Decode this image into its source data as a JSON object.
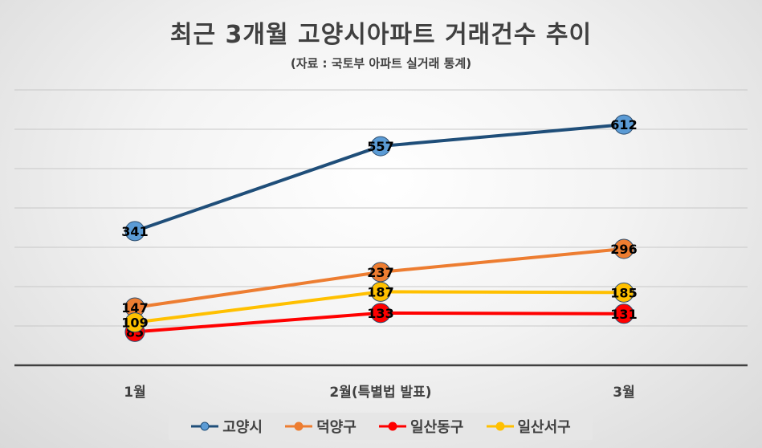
{
  "chart_data": {
    "type": "line",
    "title": "최근 3개월 고양시아파트 거래건수 추이",
    "subtitle": "(자료 : 국토부 아파트 실거래 통계)",
    "categories": [
      "1월",
      "2월(특별법 발표)",
      "3월"
    ],
    "series": [
      {
        "name": "고양시",
        "values": [
          341,
          557,
          612
        ],
        "color": "#1f4e79",
        "marker": "#5b9bd5"
      },
      {
        "name": "덕양구",
        "values": [
          147,
          237,
          296
        ],
        "color": "#ed7d31",
        "marker": "#ed7d31"
      },
      {
        "name": "일산동구",
        "values": [
          85,
          133,
          131
        ],
        "color": "#ff0000",
        "marker": "#ff0000"
      },
      {
        "name": "일산서구",
        "values": [
          109,
          187,
          185
        ],
        "color": "#ffc000",
        "marker": "#ffc000"
      }
    ],
    "ylim": [
      0,
      700
    ],
    "grid": true,
    "legend": "bottom"
  }
}
